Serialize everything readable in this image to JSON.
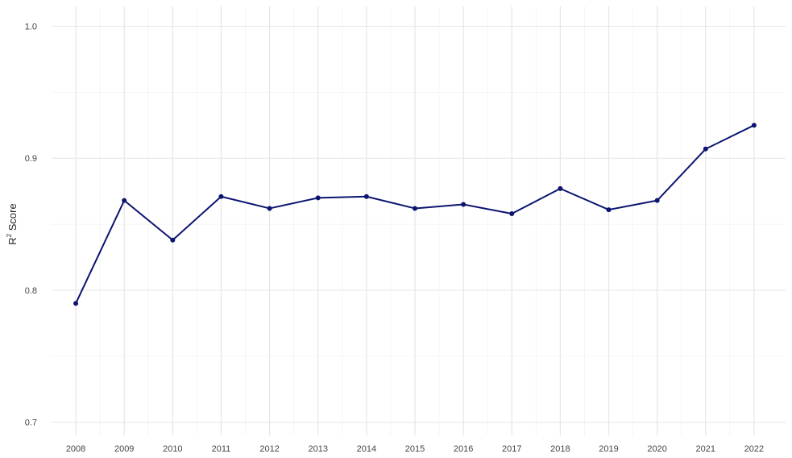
{
  "chart_data": {
    "type": "line",
    "title": "",
    "xlabel": "",
    "ylabel": "R",
    "ylabel_superscript": "2",
    "ylabel_suffix": " Score",
    "x": [
      2008,
      2009,
      2010,
      2011,
      2012,
      2013,
      2014,
      2015,
      2016,
      2017,
      2018,
      2019,
      2020,
      2021,
      2022
    ],
    "series": [
      {
        "color": "#0d1470",
        "values": [
          0.79,
          0.868,
          0.838,
          0.871,
          0.862,
          0.87,
          0.871,
          0.862,
          0.865,
          0.858,
          0.877,
          0.861,
          0.868,
          0.907,
          0.925
        ]
      }
    ],
    "xlim": [
      2007.5,
      2022.65
    ],
    "ylim": [
      0.69,
      1.015
    ],
    "y_ticks": [
      "0.7",
      "0.8",
      "0.9",
      "1.0"
    ],
    "x_ticks": [
      "2008",
      "2009",
      "2010",
      "2011",
      "2012",
      "2013",
      "2014",
      "2015",
      "2016",
      "2017",
      "2018",
      "2019",
      "2020",
      "2021",
      "2022"
    ],
    "grid": true,
    "legend": "none",
    "colors": {
      "grid_major": "#e6e6e6",
      "grid_minor": "#f3f3f3",
      "line": "#0d1470",
      "point": "#0d1470"
    }
  }
}
